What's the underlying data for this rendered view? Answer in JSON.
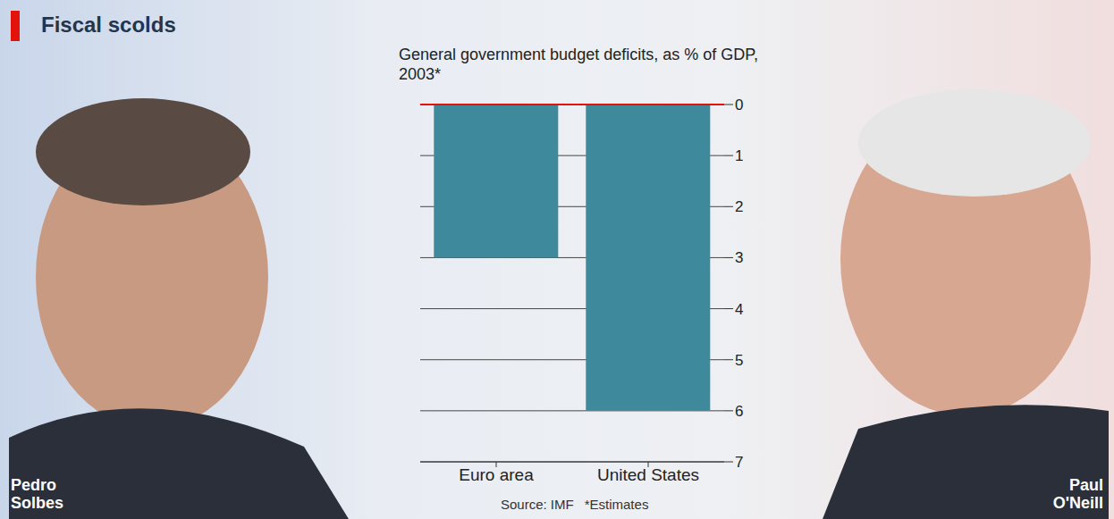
{
  "chart_data": {
    "type": "bar",
    "title": "Fiscal scolds",
    "subtitle": "General government budget deficits, as % of GDP, 2003*",
    "categories": [
      "Euro area",
      "United States"
    ],
    "values": [
      3.0,
      6.0
    ],
    "color": "#3e8a9c",
    "ylim": [
      0,
      7
    ],
    "yticks": [
      0,
      1,
      2,
      3,
      4,
      5,
      6,
      7
    ],
    "grid": true,
    "source": "Source: IMF",
    "note": "*Estimates",
    "people": [
      "Pedro Solbes",
      "Paul O'Neill"
    ]
  }
}
